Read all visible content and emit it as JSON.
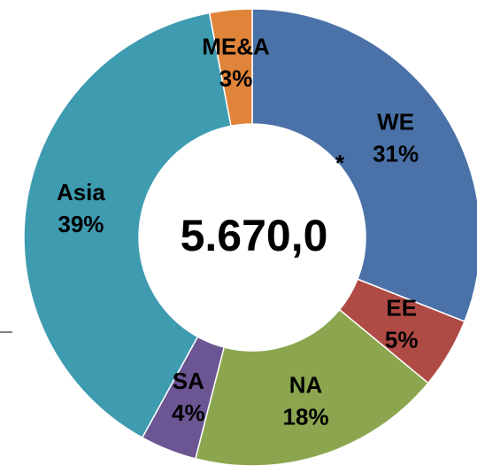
{
  "chart_data": {
    "type": "donut",
    "center_label": "5.670,0",
    "annotation": "*",
    "categories": [
      "WE",
      "EE",
      "NA",
      "SA",
      "Asia",
      "ME&A"
    ],
    "values": [
      31,
      5,
      18,
      4,
      39,
      3
    ],
    "value_labels": [
      "31%",
      "5%",
      "18%",
      "4%",
      "39%",
      "3%"
    ],
    "colors": [
      "#4a72a8",
      "#b04a45",
      "#8ba64e",
      "#6b5592",
      "#3e9bb0",
      "#e0843a"
    ]
  }
}
